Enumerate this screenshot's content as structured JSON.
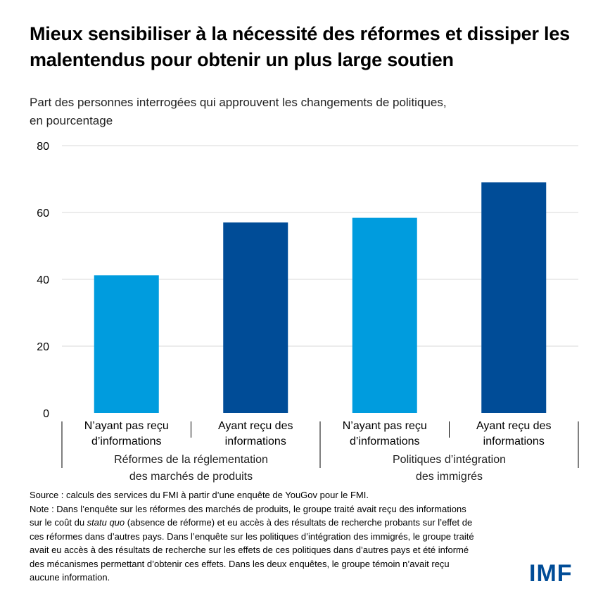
{
  "title": "Mieux sensibiliser à la nécessité des réformes et dissiper les malentendus pour obtenir un plus large soutien",
  "subtitle_line1": "Part des personnes interrogées qui approuvent les changements de politiques,",
  "subtitle_line2": "en pourcentage",
  "source": "Source : calculs des services du FMI à partir d’une enquête de YouGov pour le FMI.",
  "note_line1": "Note : Dans l’enquête sur les réformes des marchés de produits, le groupe traité avait reçu des informations",
  "note_line2_pre": "sur le coût du ",
  "note_line2_italic": "statu quo",
  "note_line2_post": " (absence de réforme) et eu accès à des résultats de recherche probants sur l’effet de",
  "note_line3": "ces réformes dans d’autres pays. Dans l’enquête sur les politiques d’intégration des immigrés, le groupe traité",
  "note_line4": "avait eu accès à des résultats de recherche sur les effets de ces politiques dans d’autres pays et été informé",
  "note_line5": "des mécanismes permettant d’obtenir ces effets. Dans les deux enquêtes, le groupe témoin n’avait reçu",
  "note_line6": "aucune information.",
  "logo": "IMF",
  "chart_data": {
    "type": "bar",
    "ylim": [
      0,
      80
    ],
    "yticks": [
      0,
      20,
      40,
      60,
      80
    ],
    "grid": true,
    "groups": [
      {
        "label_lines": [
          "Réformes de la réglementation",
          "des marchés de produits"
        ],
        "bars": [
          {
            "label_lines": [
              "N’ayant pas reçu",
              "d’informations"
            ],
            "value": 41.2,
            "color": "#009CDE"
          },
          {
            "label_lines": [
              "Ayant reçu des",
              "informations"
            ],
            "value": 57,
            "color": "#004C97"
          }
        ]
      },
      {
        "label_lines": [
          "Politiques d’intégration",
          "des immigrés"
        ],
        "bars": [
          {
            "label_lines": [
              "N’ayant pas reçu",
              "d’informations"
            ],
            "value": 58.4,
            "color": "#009CDE"
          },
          {
            "label_lines": [
              "Ayant reçu des",
              "informations"
            ],
            "value": 69,
            "color": "#004C97"
          }
        ]
      }
    ]
  }
}
